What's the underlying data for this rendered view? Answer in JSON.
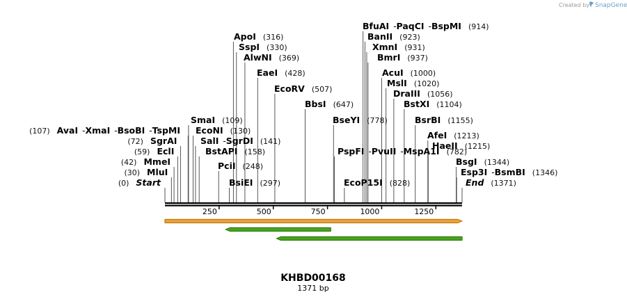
{
  "watermark": {
    "created_by": "Created by",
    "brand": "SnapGene"
  },
  "plasmid": {
    "name": "KHBD00168",
    "length_label": "1371 bp",
    "length": 1371
  },
  "axis": {
    "ticks": [
      250,
      500,
      750,
      1000,
      1250
    ]
  },
  "sites": [
    {
      "name": "Start",
      "pos": 0,
      "pos_label": "(0)",
      "italic": true
    },
    {
      "name": "MluI",
      "pos": 30,
      "pos_label": "(30)"
    },
    {
      "name": "MmeI",
      "pos": 42,
      "pos_label": "(42)"
    },
    {
      "name": "EclI",
      "pos": 59,
      "pos_label": "(59)"
    },
    {
      "name": "SgrAI",
      "pos": 72,
      "pos_label": "(72)"
    },
    {
      "names": [
        "AvaI",
        "XmaI",
        "BsoBI",
        "TspMI"
      ],
      "pos": 107,
      "pos_label": "(107)"
    },
    {
      "name": "SmaI",
      "pos": 109,
      "pos_label": "(109)"
    },
    {
      "name": "EcoNI",
      "pos": 130,
      "pos_label": "(130)"
    },
    {
      "names": [
        "SalI",
        "SgrDI"
      ],
      "pos": 141,
      "pos_label": "(141)"
    },
    {
      "name": "BstAPI",
      "pos": 158,
      "pos_label": "(158)"
    },
    {
      "name": "PciI",
      "pos": 248,
      "pos_label": "(248)"
    },
    {
      "name": "BsiEI",
      "pos": 297,
      "pos_label": "(297)"
    },
    {
      "name": "ApoI",
      "pos": 316,
      "pos_label": "(316)"
    },
    {
      "name": "SspI",
      "pos": 330,
      "pos_label": "(330)"
    },
    {
      "name": "AlwNI",
      "pos": 369,
      "pos_label": "(369)"
    },
    {
      "name": "EaeI",
      "pos": 428,
      "pos_label": "(428)"
    },
    {
      "name": "EcoRV",
      "pos": 507,
      "pos_label": "(507)"
    },
    {
      "name": "BbsI",
      "pos": 647,
      "pos_label": "(647)"
    },
    {
      "name": "BseYI",
      "pos": 778,
      "pos_label": "(778)"
    },
    {
      "names": [
        "PspFI",
        "PvuII",
        "MspA1I"
      ],
      "pos": 782,
      "pos_label": "(782)"
    },
    {
      "name": "EcoP15I",
      "pos": 828,
      "pos_label": "(828)"
    },
    {
      "names": [
        "BfuAI",
        "PaqCI",
        "BspMI"
      ],
      "pos": 914,
      "pos_label": "(914)"
    },
    {
      "name": "BanII",
      "pos": 923,
      "pos_label": "(923)"
    },
    {
      "name": "XmnI",
      "pos": 931,
      "pos_label": "(931)"
    },
    {
      "name": "BmrI",
      "pos": 937,
      "pos_label": "(937)"
    },
    {
      "name": "AcuI",
      "pos": 1000,
      "pos_label": "(1000)"
    },
    {
      "name": "MslI",
      "pos": 1020,
      "pos_label": "(1020)"
    },
    {
      "name": "DraIII",
      "pos": 1056,
      "pos_label": "(1056)"
    },
    {
      "name": "BstXI",
      "pos": 1104,
      "pos_label": "(1104)"
    },
    {
      "name": "BsrBI",
      "pos": 1155,
      "pos_label": "(1155)"
    },
    {
      "name": "AfeI",
      "pos": 1213,
      "pos_label": "(1213)"
    },
    {
      "name": "HaeII",
      "pos": 1215,
      "pos_label": "(1215)"
    },
    {
      "name": "BsgI",
      "pos": 1344,
      "pos_label": "(1344)"
    },
    {
      "names": [
        "Esp3I",
        "BsmBI"
      ],
      "pos": 1346,
      "pos_label": "(1346)"
    },
    {
      "name": "End",
      "pos": 1371,
      "pos_label": "(1371)",
      "italic": true
    }
  ],
  "features": [
    {
      "name": "orange-feature",
      "start": 0,
      "end": 1371,
      "direction": "forward",
      "fill": "#e8a33a",
      "stroke": "#c7780f"
    },
    {
      "name": "green-feature-1",
      "start": 280,
      "end": 765,
      "direction": "reverse",
      "fill": "#4aa41f",
      "stroke": "#2f7d12"
    },
    {
      "name": "green-feature-2",
      "start": 515,
      "end": 1371,
      "direction": "reverse",
      "fill": "#4aa41f",
      "stroke": "#2f7d12"
    }
  ],
  "colors": {
    "backbone": "#000000",
    "leader": "#555555"
  }
}
